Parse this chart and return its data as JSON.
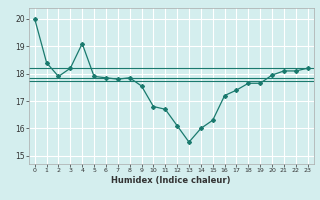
{
  "x": [
    0,
    1,
    2,
    3,
    4,
    5,
    6,
    7,
    8,
    9,
    10,
    11,
    12,
    13,
    14,
    15,
    16,
    17,
    18,
    19,
    20,
    21,
    22,
    23
  ],
  "y_main": [
    20.0,
    18.4,
    17.9,
    18.2,
    19.1,
    17.9,
    17.85,
    17.8,
    17.85,
    17.55,
    16.8,
    16.7,
    16.1,
    15.5,
    16.0,
    16.3,
    17.2,
    17.4,
    17.65,
    17.65,
    17.95,
    18.1,
    18.1,
    18.2
  ],
  "hline1": 18.2,
  "hline2": 17.85,
  "hline3": 17.75,
  "line_color": "#1a7a6e",
  "bg_color": "#d4eeee",
  "plot_bg": "#d4eeee",
  "grid_color": "#ffffff",
  "xlabel": "Humidex (Indice chaleur)",
  "yticks": [
    15,
    16,
    17,
    18,
    19,
    20
  ],
  "xticks": [
    0,
    1,
    2,
    3,
    4,
    5,
    6,
    7,
    8,
    9,
    10,
    11,
    12,
    13,
    14,
    15,
    16,
    17,
    18,
    19,
    20,
    21,
    22,
    23
  ],
  "ylim": [
    14.7,
    20.4
  ],
  "xlim": [
    -0.5,
    23.5
  ]
}
